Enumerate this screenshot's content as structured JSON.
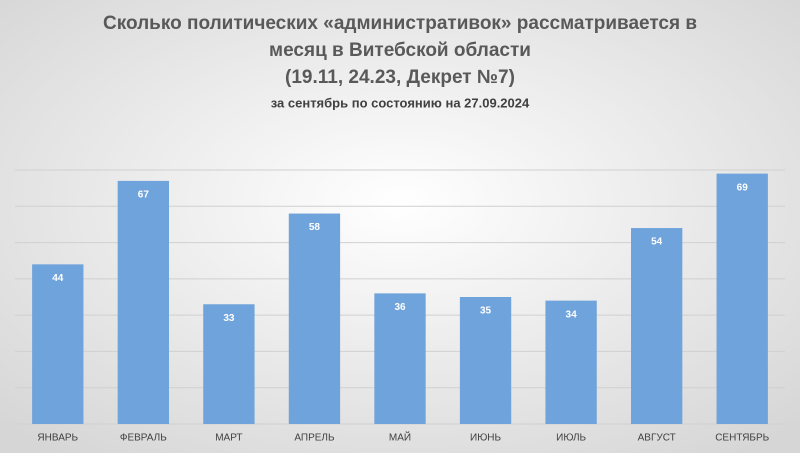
{
  "chart_data": {
    "type": "bar",
    "title": [
      "Сколько политических «административок» рассматривается в",
      "месяц в Витебской области",
      "(19.11, 24.23, Декрет №7)"
    ],
    "subtitle": "за сентябрь по состоянию на 27.09.2024",
    "categories": [
      "ЯНВАРЬ",
      "ФЕВРАЛЬ",
      "МАРТ",
      "АПРЕЛЬ",
      "МАЙ",
      "ИЮНЬ",
      "ИЮЛЬ",
      "АВГУСТ",
      "СЕНТЯБРЬ"
    ],
    "values": [
      44,
      67,
      33,
      58,
      36,
      35,
      34,
      54,
      69
    ],
    "color": "#6fa3db",
    "ylim": [
      0,
      70
    ],
    "yticks": [
      0,
      10,
      20,
      30,
      40,
      50,
      60,
      70
    ],
    "grid": true
  }
}
